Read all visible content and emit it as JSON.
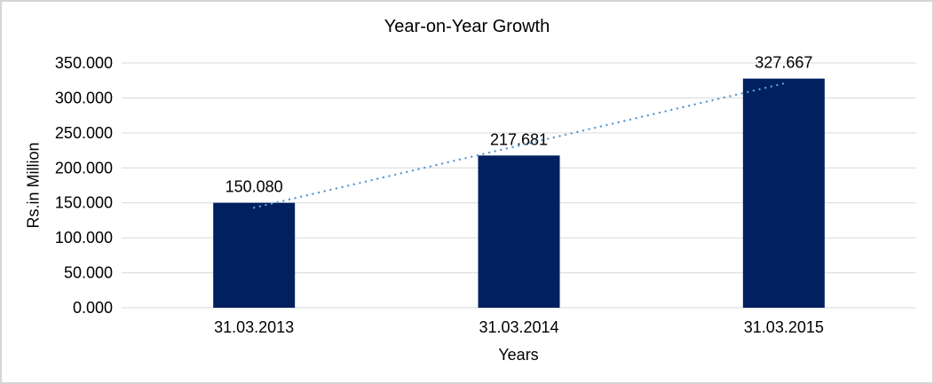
{
  "chart_data": {
    "type": "bar",
    "title": "Year-on-Year Growth",
    "xlabel": "Years",
    "ylabel": "Rs.in Million",
    "categories": [
      "31.03.2013",
      "31.03.2014",
      "31.03.2015"
    ],
    "values": [
      150.08,
      217.681,
      327.667
    ],
    "data_labels": [
      "150.080",
      "217.681",
      "327.667"
    ],
    "ylim": [
      0,
      350
    ],
    "ytick_step": 50,
    "ytick_labels": [
      "0.000",
      "50.000",
      "100.000",
      "150.000",
      "200.000",
      "250.000",
      "300.000",
      "350.000"
    ],
    "grid": true,
    "legend": "none",
    "trendline": {
      "type": "linear",
      "style": "dotted",
      "color": "#5B9BD5"
    },
    "colors": {
      "bar": "#002060",
      "gridline": "#D9D9D9",
      "axis_line": "#D9D9D9",
      "text": "#000000",
      "border": "#D5D5D5",
      "background": "#FFFFFF"
    }
  }
}
